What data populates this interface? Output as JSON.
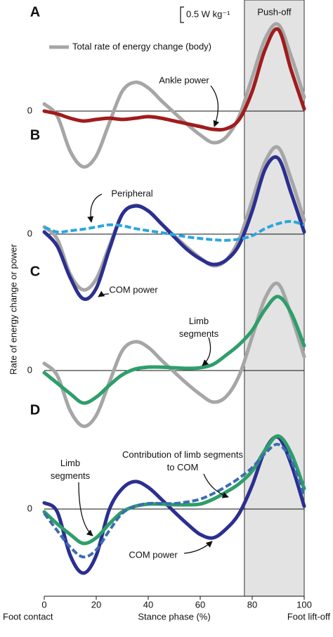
{
  "figure": {
    "ylabel": "Rate of energy change or power",
    "shaded_region": {
      "label": "Push-off",
      "x": [
        77,
        100
      ]
    },
    "scale_bar": {
      "value": 0.5,
      "label": "0.5 W kg⁻¹"
    }
  },
  "chart_data": [
    {
      "type": "line",
      "panel": "A",
      "x": [
        0,
        5,
        10,
        15,
        20,
        25,
        30,
        35,
        40,
        45,
        50,
        55,
        60,
        65,
        70,
        75,
        80,
        85,
        90,
        95,
        100
      ],
      "xlim": [
        0,
        100
      ],
      "ylim": [
        -2.2,
        2.9
      ],
      "yticks": [
        0
      ],
      "series": [
        {
          "name": "Total rate of energy change (body)",
          "color": "#a6a6a6",
          "values": [
            0.23,
            -0.16,
            -1.3,
            -1.8,
            -1.45,
            -0.39,
            0.64,
            0.93,
            0.75,
            0.34,
            -0.05,
            -0.43,
            -0.77,
            -1.02,
            -0.84,
            -0.16,
            1.09,
            2.34,
            2.8,
            1.77,
            0.45
          ]
        },
        {
          "name": "Ankle power",
          "color": "#a01c1c",
          "values": [
            0,
            -0.09,
            -0.23,
            -0.32,
            -0.27,
            -0.23,
            -0.27,
            -0.23,
            -0.18,
            -0.23,
            -0.32,
            -0.41,
            -0.5,
            -0.59,
            -0.57,
            -0.27,
            0.64,
            2.0,
            2.64,
            1.32,
            0.07
          ]
        }
      ]
    },
    {
      "type": "line",
      "panel": "B",
      "x": [
        0,
        5,
        10,
        15,
        20,
        25,
        30,
        35,
        40,
        45,
        50,
        55,
        60,
        65,
        70,
        75,
        80,
        85,
        90,
        95,
        100
      ],
      "xlim": [
        0,
        100
      ],
      "ylim": [
        -2.2,
        2.9
      ],
      "yticks": [
        0
      ],
      "series": [
        {
          "color": "#a6a6a6",
          "values": [
            0.23,
            -0.16,
            -1.3,
            -1.8,
            -1.45,
            -0.39,
            0.64,
            0.93,
            0.75,
            0.34,
            -0.05,
            -0.43,
            -0.77,
            -1.02,
            -0.84,
            -0.16,
            1.09,
            2.34,
            2.8,
            1.77,
            0.45
          ]
        },
        {
          "name": "COM power",
          "color": "#2b2f8f",
          "values": [
            0.07,
            -0.39,
            -1.41,
            -2.09,
            -1.75,
            -0.5,
            0.64,
            0.91,
            0.75,
            0.34,
            -0.09,
            -0.5,
            -0.8,
            -0.98,
            -0.84,
            -0.34,
            0.75,
            2.11,
            2.45,
            1.32,
            0.07
          ]
        },
        {
          "name": "Peripheral",
          "color": "#2aa6de",
          "dashed": true,
          "values": [
            0.23,
            0.07,
            0.11,
            0.16,
            0.23,
            0.3,
            0.27,
            0.18,
            0.11,
            0.05,
            -0.02,
            -0.09,
            -0.14,
            -0.18,
            -0.2,
            -0.16,
            -0.05,
            0.18,
            0.34,
            0.41,
            0.3
          ]
        }
      ]
    },
    {
      "type": "line",
      "panel": "C",
      "x": [
        0,
        5,
        10,
        15,
        20,
        25,
        30,
        35,
        40,
        45,
        50,
        55,
        60,
        65,
        70,
        75,
        80,
        85,
        90,
        95,
        100
      ],
      "xlim": [
        0,
        100
      ],
      "ylim": [
        -2.2,
        2.9
      ],
      "yticks": [
        0
      ],
      "series": [
        {
          "color": "#a6a6a6",
          "values": [
            0.23,
            -0.16,
            -1.3,
            -1.8,
            -1.45,
            -0.39,
            0.64,
            0.93,
            0.75,
            0.34,
            -0.05,
            -0.43,
            -0.77,
            -1.02,
            -0.84,
            -0.16,
            1.09,
            2.34,
            2.8,
            1.77,
            0.45
          ]
        },
        {
          "name": "Limb segments",
          "color": "#2e9e6a",
          "values": [
            -0.07,
            -0.41,
            -0.75,
            -1.05,
            -0.86,
            -0.48,
            -0.14,
            0.05,
            0.11,
            0.11,
            0.09,
            0.07,
            0.09,
            0.2,
            0.5,
            0.84,
            1.3,
            1.98,
            2.39,
            1.86,
            0.8
          ]
        }
      ]
    },
    {
      "type": "line",
      "panel": "D",
      "x": [
        0,
        5,
        10,
        15,
        20,
        25,
        30,
        35,
        40,
        45,
        50,
        55,
        60,
        65,
        70,
        75,
        80,
        85,
        90,
        95,
        100
      ],
      "xlim": [
        0,
        100
      ],
      "ylim": [
        -2.2,
        2.9
      ],
      "yticks": [
        0
      ],
      "xticks": [
        0,
        20,
        40,
        60,
        80,
        100
      ],
      "xlabel": "Stance phase (%)",
      "x_start_label": "Foot contact",
      "x_end_label": "Foot lift-off",
      "series": [
        {
          "name": "COM power",
          "color": "#2b2f8f",
          "values": [
            0.2,
            -0.09,
            -1.5,
            -2.07,
            -1.5,
            -0.02,
            0.66,
            0.89,
            0.7,
            0.32,
            -0.09,
            -0.48,
            -0.82,
            -0.93,
            -0.64,
            -0.14,
            0.77,
            1.91,
            2.32,
            1.45,
            0.09
          ]
        },
        {
          "name": "Limb segments",
          "color": "#2e9e6a",
          "values": [
            -0.09,
            -0.48,
            -0.82,
            -1.11,
            -0.93,
            -0.48,
            -0.09,
            0.09,
            0.16,
            0.16,
            0.14,
            0.14,
            0.16,
            0.32,
            0.55,
            0.82,
            1.23,
            1.91,
            2.36,
            1.8,
            0.66
          ]
        },
        {
          "name": "Contribution of limb segments to COM",
          "color": "#3a6db0",
          "dashed": true,
          "values": [
            -0.14,
            -0.7,
            -1.23,
            -1.55,
            -1.32,
            -0.7,
            -0.14,
            0.09,
            0.18,
            0.18,
            0.18,
            0.23,
            0.32,
            0.5,
            0.73,
            1.0,
            1.34,
            1.8,
            2.09,
            1.57,
            0.43
          ]
        }
      ]
    }
  ]
}
